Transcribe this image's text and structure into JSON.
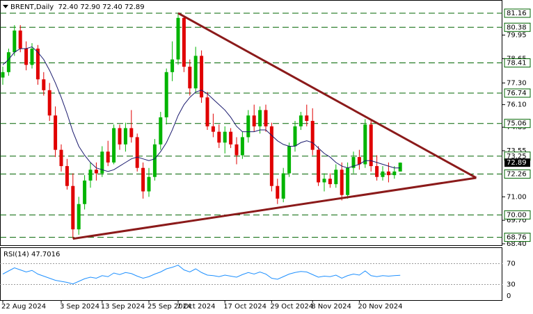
{
  "chart_data": {
    "type": "candlestick",
    "title": "BRENT,Daily  72.40 72.90 72.40 72.89",
    "categories": [
      "22 Aug 2024",
      null,
      null,
      null,
      null,
      null,
      null,
      null,
      null,
      null,
      "3 Sep 2024",
      null,
      null,
      null,
      null,
      null,
      null,
      "13 Sep 2024",
      null,
      null,
      null,
      null,
      null,
      null,
      null,
      "25 Sep 2024",
      null,
      null,
      null,
      null,
      "7 Oct 2024",
      null,
      null,
      null,
      null,
      null,
      null,
      null,
      "17 Oct 2024",
      null,
      null,
      null,
      null,
      null,
      null,
      null,
      "29 Oct 2024",
      null,
      null,
      null,
      null,
      null,
      null,
      "8 Nov 2024",
      null,
      null,
      null,
      null,
      null,
      null,
      null,
      "20 Nov 2024",
      null,
      null,
      null,
      null,
      null,
      null,
      null
    ],
    "open": [
      77.6,
      77.9,
      79.0,
      80.2,
      79.2,
      78.3,
      79.2,
      77.5,
      76.9,
      75.5,
      73.6,
      72.7,
      71.6,
      69.2,
      70.6,
      71.9,
      72.5,
      72.3,
      73.5,
      72.9,
      74.8,
      73.9,
      74.8,
      74.3,
      72.6,
      71.3,
      72.1,
      73.9,
      75.4,
      77.9,
      78.6,
      80.9,
      78.2,
      77.0,
      78.8,
      76.5,
      74.9,
      74.6,
      74.0,
      74.6,
      73.9,
      73.3,
      74.3,
      75.5,
      74.9,
      75.8,
      74.9,
      71.6,
      70.9,
      72.3,
      73.8,
      74.9,
      75.5,
      75.2,
      73.6,
      71.8,
      72.0,
      71.7,
      72.5,
      71.1,
      72.6,
      73.2,
      72.8,
      75.0,
      72.7,
      72.1,
      72.4,
      72.2,
      72.4
    ],
    "high": [
      78.2,
      79.2,
      80.5,
      80.5,
      79.6,
      79.5,
      79.4,
      77.9,
      77.3,
      76.0,
      73.9,
      73.1,
      72.3,
      71.0,
      72.2,
      72.9,
      72.9,
      73.8,
      74.1,
      75.0,
      75.0,
      75.1,
      75.8,
      74.5,
      72.9,
      72.6,
      74.2,
      75.7,
      78.1,
      79.6,
      81.16,
      81.0,
      78.6,
      79.3,
      79.1,
      76.8,
      75.6,
      75.0,
      74.9,
      74.8,
      74.3,
      74.6,
      75.8,
      76.1,
      76.0,
      76.1,
      75.1,
      72.0,
      72.6,
      74.0,
      75.2,
      75.7,
      76.1,
      75.9,
      73.8,
      72.3,
      72.3,
      72.8,
      72.9,
      72.9,
      73.5,
      73.6,
      75.3,
      75.2,
      73.3,
      72.7,
      72.9,
      72.7,
      72.9
    ],
    "low": [
      77.2,
      77.7,
      78.8,
      79.0,
      78.0,
      78.1,
      77.2,
      76.6,
      75.2,
      73.2,
      72.4,
      71.4,
      68.68,
      68.9,
      70.3,
      71.5,
      71.9,
      72.1,
      72.7,
      72.8,
      73.6,
      73.5,
      74.0,
      72.4,
      70.9,
      71.0,
      71.9,
      73.6,
      75.0,
      77.4,
      78.3,
      77.9,
      76.6,
      76.8,
      76.2,
      74.7,
      74.3,
      73.7,
      73.4,
      73.7,
      72.8,
      73.1,
      74.0,
      74.6,
      74.5,
      74.6,
      71.3,
      70.6,
      70.7,
      72.1,
      73.5,
      74.7,
      74.9,
      73.3,
      71.6,
      71.3,
      71.5,
      71.5,
      70.8,
      70.9,
      72.3,
      72.5,
      72.6,
      72.4,
      71.9,
      71.9,
      71.8,
      72.0,
      72.4
    ],
    "close": [
      77.9,
      79.0,
      80.2,
      79.2,
      78.3,
      79.2,
      77.5,
      76.9,
      75.5,
      73.6,
      72.7,
      71.6,
      69.2,
      70.6,
      71.9,
      72.5,
      72.3,
      73.5,
      72.9,
      74.8,
      73.9,
      74.8,
      74.3,
      72.6,
      71.3,
      72.1,
      73.9,
      75.4,
      77.9,
      78.6,
      80.9,
      78.2,
      77.0,
      78.8,
      76.5,
      74.9,
      74.6,
      74.0,
      74.6,
      73.9,
      73.3,
      74.3,
      75.5,
      74.9,
      75.8,
      74.9,
      71.6,
      70.9,
      72.3,
      73.8,
      74.9,
      75.5,
      75.2,
      73.6,
      71.8,
      72.0,
      71.7,
      72.5,
      71.1,
      72.6,
      73.2,
      72.8,
      75.0,
      72.7,
      72.1,
      72.4,
      72.2,
      72.4,
      72.89
    ],
    "up_color": "#00b400",
    "down_color": "#e00000",
    "ylim": [
      68.36,
      81.89
    ],
    "yticks": [
      {
        "value": 68.4,
        "label": "68.40"
      },
      {
        "value": 69.7,
        "label": "69.70"
      },
      {
        "value": 71,
        "label": "71.00"
      },
      73.55,
      74.85,
      {
        "value": 76.1,
        "label": "76.10"
      },
      {
        "value": 77.3,
        "label": "77.30"
      },
      78.65,
      79.95
    ],
    "level_color": "#006400",
    "levels": [
      81.16,
      80.38,
      78.41,
      76.74,
      75.06,
      73.25,
      72.26,
      {
        "value": 70,
        "label": "70.00"
      },
      68.76
    ],
    "current_price": 72.89,
    "moving_average": {
      "color": "#1a1a6e",
      "values": [
        78.3,
        78.6,
        79.0,
        79.2,
        79.2,
        79.3,
        79.0,
        78.6,
        78.0,
        77.3,
        76.5,
        75.6,
        74.6,
        73.8,
        73.3,
        72.9,
        72.6,
        72.5,
        72.4,
        72.5,
        72.7,
        72.9,
        73.1,
        73.2,
        73.1,
        73.0,
        73.1,
        73.5,
        74.0,
        74.7,
        75.5,
        76.1,
        76.5,
        76.8,
        76.9,
        76.7,
        76.4,
        76.1,
        75.8,
        75.4,
        74.9,
        74.6,
        74.6,
        74.6,
        74.7,
        74.7,
        74.4,
        74.1,
        73.9,
        73.8,
        73.8,
        74.0,
        74.1,
        74.0,
        73.7,
        73.4,
        73.2,
        72.9,
        72.7,
        72.6,
        72.7,
        72.8,
        73.0,
        73.0,
        72.9,
        72.8,
        72.7,
        72.6,
        72.6
      ]
    },
    "trendlines": [
      {
        "color": "#8b1a1a",
        "x": [
          30,
          81
        ],
        "values": [
          81.16,
          72.05
        ]
      },
      {
        "color": "#8b1a1a",
        "x": [
          12,
          81
        ],
        "values": [
          68.68,
          72.05
        ]
      }
    ],
    "rsi": {
      "title": "RSI(14) 47.7016",
      "color": "#1e90ff",
      "ylim": [
        0,
        100
      ],
      "yticks": [
        0,
        30,
        70
      ],
      "values": [
        50,
        56,
        62,
        58,
        54,
        57,
        50,
        46,
        42,
        38,
        36,
        34,
        31,
        36,
        41,
        44,
        42,
        47,
        45,
        52,
        49,
        53,
        51,
        46,
        42,
        45,
        50,
        54,
        60,
        63,
        67,
        58,
        54,
        60,
        53,
        48,
        47,
        45,
        48,
        46,
        44,
        49,
        53,
        50,
        54,
        50,
        42,
        40,
        45,
        50,
        53,
        55,
        54,
        49,
        44,
        46,
        45,
        48,
        42,
        47,
        50,
        48,
        56,
        47,
        45,
        47,
        46,
        47,
        47.7
      ]
    }
  }
}
